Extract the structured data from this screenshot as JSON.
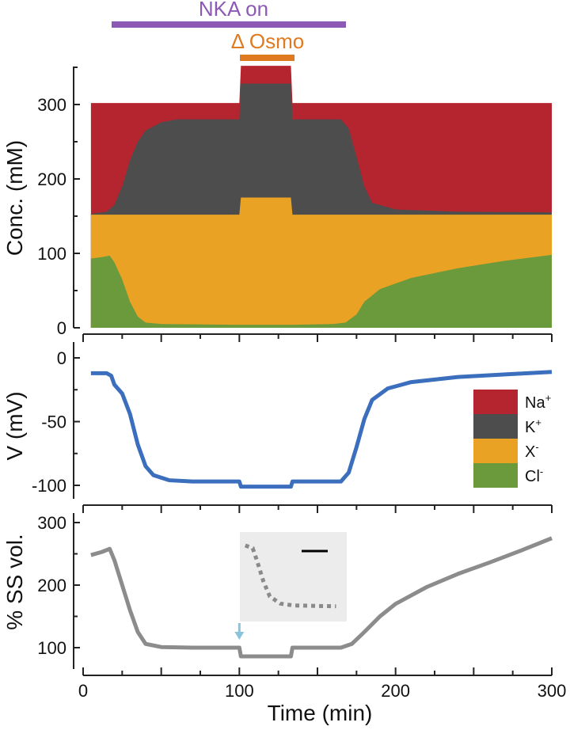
{
  "colors": {
    "na": "#b5252f",
    "k": "#4d4d4d",
    "x": "#e9a224",
    "cl": "#6b9a3d",
    "voltage": "#3b6fbd",
    "volume": "#8c8c8c",
    "nka_bar": "#8c5ab4",
    "osmo_bar": "#e07a20",
    "arrow": "#89c4dc",
    "inset_bg": "#ececec"
  },
  "annotations": {
    "nka_label": "NKA on",
    "osmo_label": "Δ Osmo"
  },
  "axes": {
    "x_label": "Time (min)",
    "x_ticks": [
      "0",
      "100",
      "200",
      "300"
    ],
    "top_y_label": "Conc. (mM)",
    "top_y_ticks": [
      "0",
      "100",
      "200",
      "300"
    ],
    "mid_y_label": "V (mV)",
    "mid_y_ticks": [
      "0",
      "-50",
      "-100"
    ],
    "bot_y_label": "% SS vol.",
    "bot_y_ticks": [
      "100",
      "200",
      "300"
    ]
  },
  "legend": [
    {
      "key": "na",
      "label": "Na",
      "sup": "+"
    },
    {
      "key": "k",
      "label": "K",
      "sup": "+"
    },
    {
      "key": "x",
      "label": "X",
      "sup": "-"
    },
    {
      "key": "cl",
      "label": "Cl",
      "sup": "-"
    }
  ],
  "chart_data": [
    {
      "type": "area",
      "ylabel": "Conc. (mM)",
      "xlabel": "Time (min)",
      "xlim": [
        0,
        300
      ],
      "ylim": [
        0,
        350
      ],
      "x_start": 5,
      "x_end": 300,
      "annotation_bars": [
        {
          "label": "NKA on",
          "x_start": 18,
          "x_end": 167
        },
        {
          "label": "Δ Osmo",
          "x_start": 100,
          "x_end": 134
        }
      ],
      "series": [
        {
          "name": "Cl-",
          "points": [
            [
              5,
              93
            ],
            [
              12,
              95
            ],
            [
              17,
              97
            ],
            [
              20,
              88
            ],
            [
              25,
              65
            ],
            [
              30,
              35
            ],
            [
              35,
              15
            ],
            [
              40,
              7
            ],
            [
              50,
              5
            ],
            [
              100,
              4
            ],
            [
              134,
              4
            ],
            [
              160,
              5
            ],
            [
              168,
              7
            ],
            [
              175,
              18
            ],
            [
              180,
              35
            ],
            [
              190,
              52
            ],
            [
              210,
              67
            ],
            [
              240,
              80
            ],
            [
              270,
              90
            ],
            [
              300,
              98
            ]
          ]
        },
        {
          "name": "X-",
          "points": [
            [
              5,
              152
            ],
            [
              100,
              152
            ],
            [
              100,
              152
            ],
            [
              101,
              175
            ],
            [
              133,
              175
            ],
            [
              134,
              152
            ],
            [
              300,
              152
            ]
          ]
        },
        {
          "name": "K+",
          "points": [
            [
              5,
              153
            ],
            [
              15,
              156
            ],
            [
              20,
              165
            ],
            [
              25,
              190
            ],
            [
              30,
              225
            ],
            [
              35,
              250
            ],
            [
              40,
              265
            ],
            [
              50,
              276
            ],
            [
              60,
              280
            ],
            [
              100,
              280
            ],
            [
              100,
              280
            ],
            [
              101,
              328
            ],
            [
              133,
              328
            ],
            [
              134,
              280
            ],
            [
              165,
              280
            ],
            [
              170,
              268
            ],
            [
              175,
              230
            ],
            [
              180,
              190
            ],
            [
              185,
              168
            ],
            [
              200,
              159
            ],
            [
              240,
              156
            ],
            [
              300,
              155
            ]
          ]
        },
        {
          "name": "Na+",
          "points": [
            [
              5,
              302
            ],
            [
              100,
              302
            ],
            [
              100,
              302
            ],
            [
              101,
              352
            ],
            [
              133,
              352
            ],
            [
              134,
              302
            ],
            [
              300,
              302
            ]
          ]
        }
      ]
    },
    {
      "type": "line",
      "ylabel": "V (mV)",
      "xlabel": "Time (min)",
      "xlim": [
        0,
        300
      ],
      "ylim": [
        -110,
        0
      ],
      "series": [
        {
          "name": "V",
          "points": [
            [
              5,
              -12
            ],
            [
              15,
              -12
            ],
            [
              18,
              -14
            ],
            [
              20,
              -21
            ],
            [
              25,
              -28
            ],
            [
              30,
              -44
            ],
            [
              35,
              -68
            ],
            [
              40,
              -85
            ],
            [
              45,
              -92
            ],
            [
              55,
              -96
            ],
            [
              70,
              -97
            ],
            [
              100,
              -97
            ],
            [
              100,
              -97
            ],
            [
              101,
              -101
            ],
            [
              133,
              -101
            ],
            [
              134,
              -97
            ],
            [
              165,
              -97
            ],
            [
              170,
              -90
            ],
            [
              175,
              -70
            ],
            [
              180,
              -48
            ],
            [
              185,
              -33
            ],
            [
              195,
              -24
            ],
            [
              210,
              -19
            ],
            [
              240,
              -15
            ],
            [
              270,
              -13
            ],
            [
              300,
              -11
            ]
          ]
        }
      ]
    },
    {
      "type": "line",
      "ylabel": "% SS vol.",
      "xlabel": "Time (min)",
      "xlim": [
        0,
        300
      ],
      "ylim": [
        60,
        310
      ],
      "series": [
        {
          "name": "% SS vol.",
          "points": [
            [
              5,
              248
            ],
            [
              12,
              253
            ],
            [
              17,
              258
            ],
            [
              20,
              240
            ],
            [
              25,
              200
            ],
            [
              30,
              160
            ],
            [
              35,
              125
            ],
            [
              40,
              106
            ],
            [
              50,
              101
            ],
            [
              70,
              100
            ],
            [
              100,
              100
            ],
            [
              100,
              100
            ],
            [
              101,
              86
            ],
            [
              133,
              86
            ],
            [
              134,
              100
            ],
            [
              165,
              100
            ],
            [
              172,
              106
            ],
            [
              180,
              125
            ],
            [
              190,
              150
            ],
            [
              200,
              170
            ],
            [
              220,
              197
            ],
            [
              240,
              218
            ],
            [
              260,
              236
            ],
            [
              280,
              255
            ],
            [
              300,
              275
            ]
          ]
        }
      ],
      "inset": {
        "series": [
          {
            "name": "inset-dotted",
            "points": [
              [
                0.05,
                0.15
              ],
              [
                0.12,
                0.18
              ],
              [
                0.16,
                0.32
              ],
              [
                0.22,
                0.55
              ],
              [
                0.28,
                0.72
              ],
              [
                0.38,
                0.8
              ],
              [
                0.5,
                0.82
              ],
              [
                0.9,
                0.83
              ]
            ]
          }
        ]
      }
    }
  ]
}
